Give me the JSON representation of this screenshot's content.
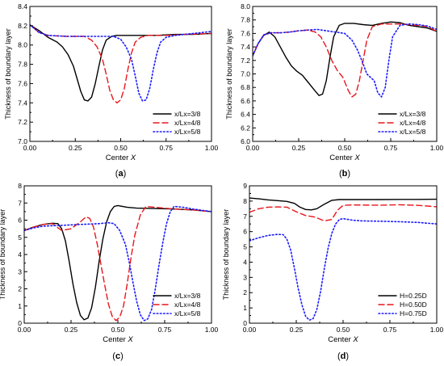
{
  "chart_data": [
    {
      "panel_label": "(a)",
      "type": "line",
      "xlabel": "Center X",
      "ylabel": "Thickness of boundary layer",
      "xlim": [
        0,
        1
      ],
      "ylim": [
        7.0,
        8.4
      ],
      "xticks": [
        "0.00",
        "0.25",
        "0.50",
        "0.75",
        "1.00"
      ],
      "yticks": [
        "7.0",
        "7.2",
        "7.4",
        "7.6",
        "7.8",
        "8.0",
        "8.2",
        "8.4"
      ],
      "legend_position": "bottom-right",
      "series": [
        {
          "name": "x/Lx=3/8",
          "color": "#000000",
          "dash": "solid",
          "x": [
            0.0,
            0.05,
            0.1,
            0.15,
            0.18,
            0.21,
            0.24,
            0.26,
            0.28,
            0.3,
            0.32,
            0.34,
            0.36,
            0.38,
            0.4,
            0.42,
            0.45,
            0.48,
            0.52,
            0.6,
            0.7,
            0.8,
            0.9,
            1.0
          ],
          "y": [
            8.21,
            8.15,
            8.08,
            8.03,
            7.98,
            7.9,
            7.78,
            7.65,
            7.52,
            7.43,
            7.42,
            7.46,
            7.6,
            7.78,
            7.95,
            8.05,
            8.09,
            8.1,
            8.1,
            8.1,
            8.1,
            8.11,
            8.11,
            8.12
          ]
        },
        {
          "name": "x/Lx=4/8",
          "color": "#e8161b",
          "dash": "dashed",
          "x": [
            0.0,
            0.05,
            0.1,
            0.2,
            0.3,
            0.34,
            0.37,
            0.4,
            0.42,
            0.44,
            0.46,
            0.48,
            0.5,
            0.52,
            0.54,
            0.56,
            0.58,
            0.61,
            0.65,
            0.75,
            0.85,
            1.0
          ],
          "y": [
            8.21,
            8.13,
            8.1,
            8.09,
            8.09,
            8.05,
            7.98,
            7.85,
            7.7,
            7.53,
            7.43,
            7.4,
            7.43,
            7.55,
            7.75,
            7.92,
            8.03,
            8.08,
            8.1,
            8.1,
            8.11,
            8.12
          ]
        },
        {
          "name": "x/Lx=5/8",
          "color": "#1a1aff",
          "dash": "dotted",
          "x": [
            0.0,
            0.05,
            0.1,
            0.2,
            0.3,
            0.4,
            0.46,
            0.5,
            0.53,
            0.56,
            0.58,
            0.6,
            0.62,
            0.64,
            0.66,
            0.68,
            0.7,
            0.72,
            0.75,
            0.8,
            0.9,
            1.0
          ],
          "y": [
            8.21,
            8.13,
            8.1,
            8.09,
            8.09,
            8.09,
            8.09,
            8.06,
            7.98,
            7.85,
            7.68,
            7.5,
            7.42,
            7.43,
            7.55,
            7.75,
            7.92,
            8.03,
            8.08,
            8.1,
            8.12,
            8.14
          ]
        }
      ]
    },
    {
      "panel_label": "(b)",
      "type": "line",
      "xlabel": "Center X",
      "ylabel": "Thickness of boundary layer",
      "xlim": [
        0,
        1
      ],
      "ylim": [
        6.0,
        8.0
      ],
      "xticks": [
        "0.00",
        "0.25",
        "0.50",
        "0.75",
        "1.00"
      ],
      "yticks": [
        "6.0",
        "6.2",
        "6.4",
        "6.6",
        "6.8",
        "7.0",
        "7.2",
        "7.4",
        "7.6",
        "7.8",
        "8.0"
      ],
      "legend_position": "bottom-right",
      "series": [
        {
          "name": "x/Lx=3/8",
          "color": "#000000",
          "dash": "solid",
          "x": [
            0.0,
            0.03,
            0.06,
            0.09,
            0.12,
            0.15,
            0.18,
            0.21,
            0.24,
            0.27,
            0.3,
            0.33,
            0.36,
            0.38,
            0.4,
            0.42,
            0.44,
            0.47,
            0.5,
            0.55,
            0.6,
            0.65,
            0.7,
            0.75,
            0.8,
            0.85,
            0.9,
            0.95,
            1.0
          ],
          "y": [
            7.27,
            7.45,
            7.57,
            7.62,
            7.55,
            7.4,
            7.25,
            7.12,
            7.04,
            6.98,
            6.88,
            6.78,
            6.68,
            6.7,
            6.9,
            7.25,
            7.55,
            7.72,
            7.75,
            7.75,
            7.73,
            7.72,
            7.75,
            7.77,
            7.76,
            7.72,
            7.7,
            7.68,
            7.63
          ]
        },
        {
          "name": "x/Lx=4/8",
          "color": "#e8161b",
          "dash": "dashed",
          "x": [
            0.0,
            0.03,
            0.06,
            0.1,
            0.15,
            0.2,
            0.25,
            0.3,
            0.34,
            0.37,
            0.4,
            0.43,
            0.46,
            0.49,
            0.52,
            0.54,
            0.56,
            0.58,
            0.6,
            0.62,
            0.65,
            0.7,
            0.75,
            0.8,
            0.85,
            0.9,
            0.95,
            1.0
          ],
          "y": [
            7.27,
            7.45,
            7.58,
            7.61,
            7.61,
            7.62,
            7.64,
            7.65,
            7.62,
            7.55,
            7.4,
            7.2,
            7.05,
            6.95,
            6.75,
            6.66,
            6.7,
            6.9,
            7.2,
            7.5,
            7.7,
            7.74,
            7.74,
            7.74,
            7.73,
            7.72,
            7.7,
            7.63
          ]
        },
        {
          "name": "x/Lx=5/8",
          "color": "#1a1aff",
          "dash": "dotted",
          "x": [
            0.0,
            0.03,
            0.06,
            0.1,
            0.15,
            0.2,
            0.25,
            0.3,
            0.35,
            0.4,
            0.45,
            0.5,
            0.54,
            0.57,
            0.6,
            0.62,
            0.64,
            0.66,
            0.68,
            0.7,
            0.72,
            0.74,
            0.76,
            0.8,
            0.85,
            0.9,
            0.95,
            1.0
          ],
          "y": [
            7.27,
            7.45,
            7.58,
            7.61,
            7.61,
            7.62,
            7.64,
            7.65,
            7.66,
            7.64,
            7.62,
            7.6,
            7.5,
            7.35,
            7.15,
            7.0,
            6.95,
            6.9,
            6.72,
            6.66,
            6.8,
            7.2,
            7.55,
            7.72,
            7.74,
            7.73,
            7.71,
            7.66
          ]
        }
      ]
    },
    {
      "panel_label": "(c)",
      "type": "line",
      "xlabel": "Center X",
      "ylabel": "Thickness of boundary layer",
      "xlim": [
        0,
        1
      ],
      "ylim": [
        0,
        8
      ],
      "xticks": [
        "0.00",
        "0.25",
        "0.50",
        "0.75",
        "1.00"
      ],
      "yticks": [
        "0",
        "1",
        "2",
        "3",
        "4",
        "5",
        "6",
        "7",
        "8"
      ],
      "legend_position": "bottom-right",
      "series": [
        {
          "name": "x/Lx=3/8",
          "color": "#000000",
          "dash": "solid",
          "x": [
            0.0,
            0.05,
            0.1,
            0.15,
            0.18,
            0.2,
            0.22,
            0.24,
            0.26,
            0.28,
            0.3,
            0.32,
            0.34,
            0.36,
            0.38,
            0.4,
            0.42,
            0.44,
            0.46,
            0.48,
            0.5,
            0.55,
            0.6,
            0.7,
            0.8,
            0.9,
            1.0
          ],
          "y": [
            5.4,
            5.6,
            5.75,
            5.82,
            5.8,
            5.5,
            4.8,
            3.6,
            2.3,
            1.2,
            0.45,
            0.2,
            0.3,
            0.9,
            2.1,
            3.6,
            4.9,
            5.9,
            6.5,
            6.8,
            6.85,
            6.75,
            6.7,
            6.68,
            6.65,
            6.6,
            6.5
          ]
        },
        {
          "name": "x/Lx=4/8",
          "color": "#e8161b",
          "dash": "dashed",
          "x": [
            0.0,
            0.05,
            0.1,
            0.15,
            0.2,
            0.25,
            0.3,
            0.33,
            0.35,
            0.37,
            0.39,
            0.41,
            0.43,
            0.45,
            0.47,
            0.49,
            0.51,
            0.53,
            0.55,
            0.57,
            0.59,
            0.62,
            0.65,
            0.7,
            0.8,
            0.9,
            1.0
          ],
          "y": [
            5.4,
            5.6,
            5.75,
            5.8,
            5.4,
            5.5,
            5.9,
            6.2,
            6.1,
            5.6,
            4.6,
            3.4,
            2.2,
            1.1,
            0.4,
            0.15,
            0.35,
            1.0,
            2.3,
            3.8,
            5.1,
            6.3,
            6.8,
            6.75,
            6.65,
            6.6,
            6.5
          ]
        },
        {
          "name": "x/Lx=5/8",
          "color": "#1a1aff",
          "dash": "dotted",
          "x": [
            0.0,
            0.05,
            0.1,
            0.2,
            0.3,
            0.4,
            0.45,
            0.48,
            0.51,
            0.54,
            0.56,
            0.58,
            0.6,
            0.62,
            0.64,
            0.66,
            0.68,
            0.7,
            0.72,
            0.74,
            0.76,
            0.78,
            0.8,
            0.85,
            0.9,
            1.0
          ],
          "y": [
            5.4,
            5.55,
            5.65,
            5.7,
            5.75,
            5.8,
            5.85,
            5.8,
            5.4,
            4.6,
            3.6,
            2.4,
            1.3,
            0.5,
            0.15,
            0.25,
            0.8,
            2.0,
            3.4,
            4.7,
            5.8,
            6.5,
            6.8,
            6.75,
            6.65,
            6.5
          ]
        }
      ]
    },
    {
      "panel_label": "(d)",
      "type": "line",
      "xlabel": "Center X",
      "ylabel": "Thickness of boundary layer",
      "xlim": [
        0,
        1
      ],
      "ylim": [
        0,
        9
      ],
      "xticks": [
        "0.00",
        "0.25",
        "0.50",
        "0.75",
        "1.00"
      ],
      "yticks": [
        "0",
        "1",
        "2",
        "3",
        "4",
        "5",
        "6",
        "7",
        "8",
        "9"
      ],
      "legend_position": "bottom-right",
      "series": [
        {
          "name": "H=0.25D",
          "color": "#000000",
          "dash": "solid",
          "x": [
            0.0,
            0.05,
            0.1,
            0.15,
            0.2,
            0.24,
            0.27,
            0.3,
            0.33,
            0.36,
            0.4,
            0.44,
            0.48,
            0.52,
            0.6,
            0.7,
            0.8,
            0.9,
            1.0
          ],
          "y": [
            8.2,
            8.15,
            8.08,
            8.03,
            7.98,
            7.85,
            7.6,
            7.45,
            7.42,
            7.5,
            7.8,
            8.05,
            8.1,
            8.1,
            8.1,
            8.1,
            8.11,
            8.11,
            8.12
          ]
        },
        {
          "name": "H=0.50D",
          "color": "#e8161b",
          "dash": "dashed",
          "x": [
            0.0,
            0.05,
            0.1,
            0.15,
            0.2,
            0.25,
            0.3,
            0.35,
            0.4,
            0.44,
            0.47,
            0.5,
            0.55,
            0.6,
            0.7,
            0.8,
            0.9,
            1.0
          ],
          "y": [
            7.27,
            7.5,
            7.6,
            7.62,
            7.6,
            7.3,
            7.05,
            6.95,
            6.7,
            6.8,
            7.4,
            7.72,
            7.75,
            7.74,
            7.73,
            7.76,
            7.72,
            7.63
          ]
        },
        {
          "name": "H=0.75D",
          "color": "#1a1aff",
          "dash": "dotted",
          "x": [
            0.0,
            0.05,
            0.1,
            0.15,
            0.18,
            0.2,
            0.22,
            0.24,
            0.26,
            0.28,
            0.3,
            0.32,
            0.34,
            0.36,
            0.38,
            0.4,
            0.42,
            0.44,
            0.46,
            0.48,
            0.5,
            0.55,
            0.6,
            0.7,
            0.8,
            0.9,
            1.0
          ],
          "y": [
            5.4,
            5.6,
            5.75,
            5.82,
            5.8,
            5.5,
            4.8,
            3.6,
            2.3,
            1.2,
            0.45,
            0.2,
            0.3,
            0.9,
            2.1,
            3.6,
            4.9,
            5.9,
            6.5,
            6.8,
            6.85,
            6.75,
            6.7,
            6.68,
            6.65,
            6.6,
            6.5
          ]
        }
      ]
    }
  ]
}
